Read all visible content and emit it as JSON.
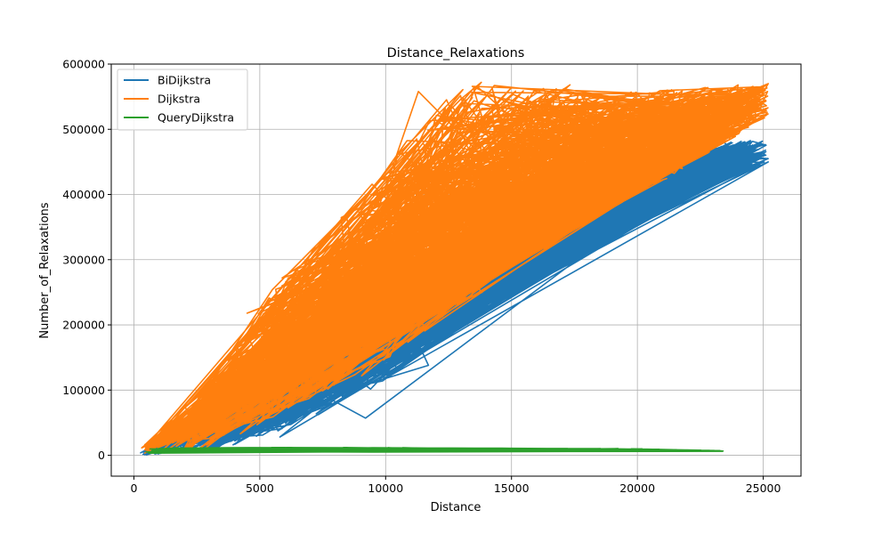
{
  "chart_data": {
    "type": "line",
    "title": "Distance_Relaxations",
    "xlabel": "Distance",
    "ylabel": "Number_of_Relaxations",
    "xlim": [
      -900,
      26500
    ],
    "ylim": [
      -32000,
      600000
    ],
    "xticks": [
      0,
      5000,
      10000,
      15000,
      20000,
      25000
    ],
    "yticks": [
      0,
      100000,
      200000,
      300000,
      400000,
      500000,
      600000
    ],
    "xtick_labels": [
      "0",
      "5000",
      "10000",
      "15000",
      "20000",
      "25000"
    ],
    "ytick_labels": [
      "0",
      "100000",
      "200000",
      "300000",
      "400000",
      "500000",
      "600000"
    ],
    "grid": true,
    "legend_position": "top-left",
    "series": [
      {
        "name": "BiDijkstra",
        "color": "#1f77b4",
        "note_shape": "dense zig-zag band",
        "band": {
          "x_range": [
            250,
            25200
          ],
          "lower": [
            [
              250,
              0
            ],
            [
              3000,
              5000
            ],
            [
              6000,
              40000
            ],
            [
              9000,
              90000
            ],
            [
              12000,
              170000
            ],
            [
              15000,
              250000
            ],
            [
              18000,
              330000
            ],
            [
              21000,
              390000
            ],
            [
              25200,
              450000
            ]
          ],
          "upper": [
            [
              250,
              8000
            ],
            [
              3000,
              40000
            ],
            [
              6000,
              140000
            ],
            [
              9000,
              230000
            ],
            [
              12000,
              300000
            ],
            [
              15000,
              370000
            ],
            [
              18000,
              430000
            ],
            [
              21000,
              470000
            ],
            [
              23000,
              483000
            ]
          ]
        },
        "outliers": [
          [
            25200,
            450000
          ],
          [
            23000,
            483000
          ],
          [
            23100,
            468000
          ],
          [
            22600,
            476000
          ],
          [
            9200,
            57000
          ],
          [
            5800,
            28000
          ],
          [
            11700,
            138000
          ]
        ]
      },
      {
        "name": "Dijkstra",
        "color": "#ff7f0e",
        "note_shape": "dense zig-zag band",
        "band": {
          "x_range": [
            250,
            25200
          ],
          "lower": [
            [
              250,
              0
            ],
            [
              3000,
              8000
            ],
            [
              6000,
              60000
            ],
            [
              9000,
              120000
            ],
            [
              12000,
              200000
            ],
            [
              15000,
              280000
            ],
            [
              18000,
              360000
            ],
            [
              21000,
              420000
            ],
            [
              25200,
              520000
            ]
          ],
          "upper": [
            [
              250,
              10000
            ],
            [
              3000,
              110000
            ],
            [
              6000,
              280000
            ],
            [
              9000,
              400000
            ],
            [
              11000,
              490000
            ],
            [
              13000,
              570000
            ],
            [
              17000,
              570000
            ],
            [
              21000,
              560000
            ],
            [
              25200,
              570000
            ]
          ]
        },
        "outliers": [
          [
            25200,
            570000
          ],
          [
            24000,
            568000
          ],
          [
            11300,
            558000
          ],
          [
            13800,
            572000
          ],
          [
            5500,
            254000
          ],
          [
            4500,
            218000
          ]
        ]
      },
      {
        "name": "QueryDijkstra",
        "color": "#2ca02c",
        "note_shape": "flat band",
        "band": {
          "x_range": [
            250,
            23500
          ],
          "lower": [
            [
              250,
              3000
            ],
            [
              5000,
              5000
            ],
            [
              10000,
              5000
            ],
            [
              15000,
              6000
            ],
            [
              20000,
              6000
            ],
            [
              23500,
              6000
            ]
          ],
          "upper": [
            [
              250,
              11000
            ],
            [
              5000,
              12000
            ],
            [
              10000,
              12000
            ],
            [
              15000,
              11000
            ],
            [
              20000,
              10000
            ],
            [
              23500,
              7000
            ]
          ]
        },
        "outliers": []
      }
    ]
  }
}
